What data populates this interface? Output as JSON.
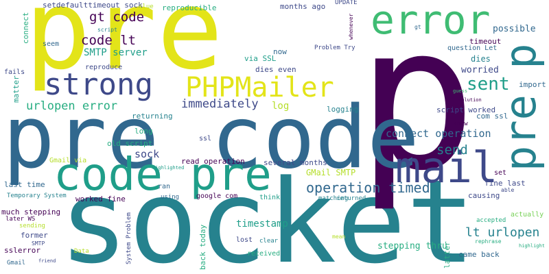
{
  "cloud": {
    "colors": {
      "yellow": "#e3e419",
      "green_light": "#3fbc73",
      "green": "#27ad81",
      "teal": "#1f9e89",
      "teal_dark": "#26828e",
      "blue": "#31688e",
      "indigo": "#3e4989",
      "purple_dark": "#440154",
      "lime": "#b5de2b",
      "pale_green": "#75d054"
    },
    "words": [
      "socket",
      "pre",
      "p",
      "pre code",
      "code pre",
      "error",
      "mail",
      "pre p",
      "strong",
      "PHPMailer",
      "gt code",
      "code lt",
      "SMTP server",
      "urlopen error",
      "sent",
      "immediately",
      "operation timed",
      "send",
      "connect operation",
      "lt urlopen",
      "timestamp",
      "stepping thru",
      "worried",
      "possible",
      "timeout",
      "question Let",
      "dies",
      "import",
      "script worked",
      "com ssl",
      "know",
      "logging",
      "log",
      "returning",
      "long",
      "old script",
      "sock",
      "ssl",
      "read operation",
      "several months",
      "GMail SMTP",
      "set",
      "fine last",
      "able",
      "causing",
      "actually",
      "accepted",
      "rephrase",
      "highlight",
      "came back",
      "latter",
      "clear",
      "lost",
      "mean",
      "matching",
      "returned",
      "think",
      "google com",
      "back today",
      "received",
      "System Problem",
      "Data",
      "friend",
      "using",
      "ran",
      "worked fine",
      "highlighted",
      "Gmail via",
      "last time",
      "Temporary System",
      "much stepping",
      "later WS",
      "sending",
      "former",
      "SMTP",
      "sslerror",
      "Gmail",
      "fails",
      "matter",
      "connect",
      "seem",
      "reproduce",
      "setdefaulttimeout sock",
      "clue",
      "script",
      "reproducible",
      "months ago",
      "UPDATE",
      "whenever",
      "gt",
      "now",
      "via SSL",
      "dies even",
      "Problem Try",
      "guess",
      "solution"
    ]
  }
}
